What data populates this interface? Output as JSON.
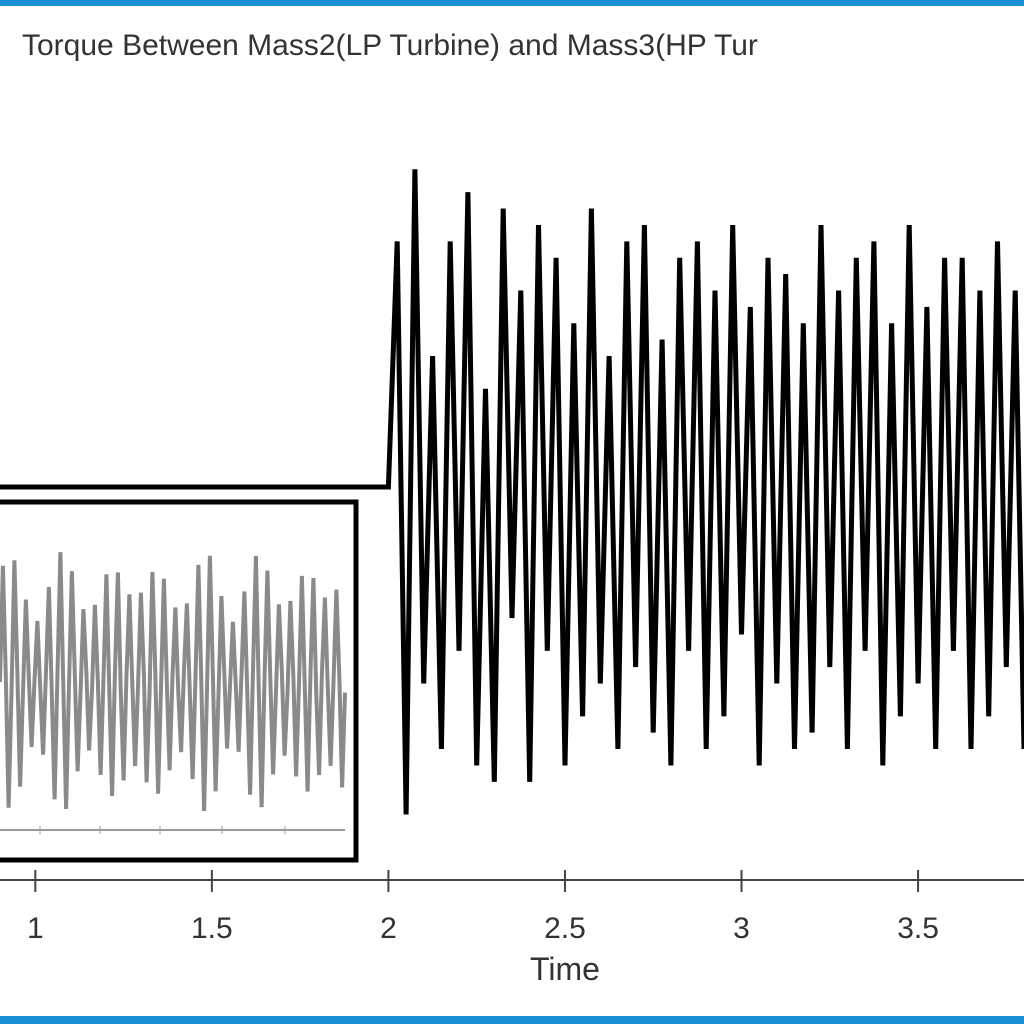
{
  "chart_data": {
    "type": "line",
    "title": "Torque Between Mass2(LP Turbine) and Mass3(HP Tur",
    "x_label": "Time",
    "color": "#000000",
    "xlim": [
      0.9,
      3.8
    ],
    "xticks": [
      1,
      1.5,
      2,
      2.5,
      3,
      3.5
    ],
    "ylim": [
      -1.2,
      1.2
    ],
    "x": [
      0.9,
      2.0,
      2.025,
      2.05,
      2.075,
      2.1,
      2.125,
      2.15,
      2.175,
      2.2,
      2.225,
      2.25,
      2.275,
      2.3,
      2.325,
      2.35,
      2.375,
      2.4,
      2.425,
      2.45,
      2.475,
      2.5,
      2.525,
      2.55,
      2.575,
      2.6,
      2.625,
      2.65,
      2.675,
      2.7,
      2.725,
      2.75,
      2.775,
      2.8,
      2.825,
      2.85,
      2.875,
      2.9,
      2.925,
      2.95,
      2.975,
      3.0,
      3.025,
      3.05,
      3.075,
      3.1,
      3.125,
      3.15,
      3.175,
      3.2,
      3.225,
      3.25,
      3.275,
      3.3,
      3.325,
      3.35,
      3.375,
      3.4,
      3.425,
      3.45,
      3.475,
      3.5,
      3.525,
      3.55,
      3.575,
      3.6,
      3.625,
      3.65,
      3.675,
      3.7,
      3.725,
      3.75,
      3.775,
      3.8
    ],
    "values": [
      0,
      0,
      0.75,
      -1.0,
      0.97,
      -0.6,
      0.4,
      -0.8,
      0.75,
      -0.5,
      0.9,
      -0.85,
      0.3,
      -0.9,
      0.85,
      -0.4,
      0.6,
      -0.9,
      0.8,
      -0.5,
      0.7,
      -0.85,
      0.5,
      -0.7,
      0.85,
      -0.6,
      0.4,
      -0.8,
      0.75,
      -0.55,
      0.8,
      -0.75,
      0.45,
      -0.85,
      0.7,
      -0.5,
      0.75,
      -0.8,
      0.6,
      -0.7,
      0.8,
      -0.45,
      0.55,
      -0.85,
      0.7,
      -0.6,
      0.65,
      -0.8,
      0.5,
      -0.75,
      0.8,
      -0.55,
      0.6,
      -0.8,
      0.7,
      -0.5,
      0.75,
      -0.85,
      0.5,
      -0.7,
      0.8,
      -0.6,
      0.55,
      -0.8,
      0.7,
      -0.5,
      0.7,
      -0.8,
      0.6,
      -0.7,
      0.75,
      -0.55,
      0.6,
      -0.8
    ]
  }
}
